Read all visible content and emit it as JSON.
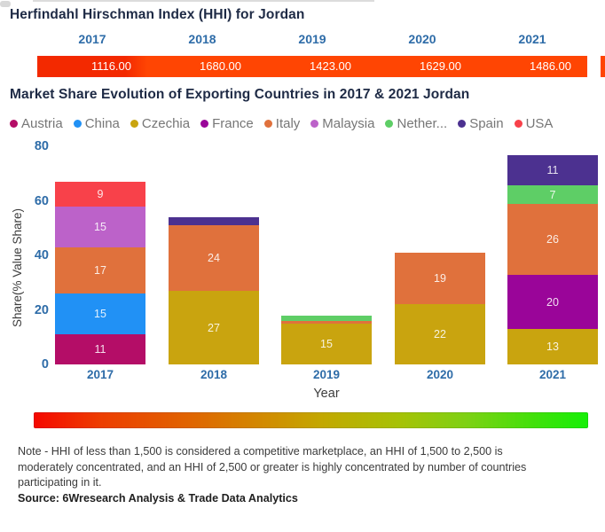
{
  "hhi_section": {
    "title": "Herfindahl Hirschman Index (HHI) for Jordan",
    "years": [
      "2017",
      "2018",
      "2019",
      "2020",
      "2021"
    ],
    "values": [
      "1116.00",
      "1680.00",
      "1423.00",
      "1629.00",
      "1486.00"
    ],
    "bar_color": "#ff4503"
  },
  "share_section": {
    "title": "Market Share Evolution of Exporting Countries in 2017 & 2021 Jordan",
    "legend": [
      {
        "label": "Austria",
        "color": "#b40d67"
      },
      {
        "label": "China",
        "color": "#2191f5"
      },
      {
        "label": "Czechia",
        "color": "#c9a40f"
      },
      {
        "label": "France",
        "color": "#9a0599"
      },
      {
        "label": "Italy",
        "color": "#e0713c"
      },
      {
        "label": "Malaysia",
        "color": "#bc62c9"
      },
      {
        "label": "Nether...",
        "color": "#5ece66"
      },
      {
        "label": "Spain",
        "color": "#4c3190"
      },
      {
        "label": "USA",
        "color": "#f8414a"
      }
    ],
    "y_axis_label": "Share(% Value Share)",
    "x_axis_label": "Year",
    "y_ticks": [
      "0",
      "20",
      "40",
      "60",
      "80"
    ],
    "x_ticks": [
      "2017",
      "2018",
      "2019",
      "2020",
      "2021"
    ]
  },
  "chart_data": [
    {
      "type": "table",
      "title": "Herfindahl Hirschman Index (HHI) for Jordan",
      "categories": [
        "2017",
        "2018",
        "2019",
        "2020",
        "2021"
      ],
      "values": [
        1116.0,
        1680.0,
        1423.0,
        1629.0,
        1486.0
      ]
    },
    {
      "type": "bar",
      "stacked": true,
      "title": "Market Share Evolution of Exporting Countries in 2017 & 2021 Jordan",
      "categories": [
        "2017",
        "2018",
        "2019",
        "2020",
        "2021"
      ],
      "series": [
        {
          "name": "Austria",
          "color": "#b40d67",
          "values": [
            11,
            0,
            0,
            0,
            0
          ]
        },
        {
          "name": "China",
          "color": "#2191f5",
          "values": [
            15,
            0,
            0,
            0,
            0
          ]
        },
        {
          "name": "Czechia",
          "color": "#c9a40f",
          "values": [
            0,
            27,
            15,
            22,
            13
          ]
        },
        {
          "name": "France",
          "color": "#9a0599",
          "values": [
            0,
            0,
            0,
            0,
            20
          ]
        },
        {
          "name": "Italy",
          "color": "#e0713c",
          "values": [
            17,
            24,
            1,
            19,
            26
          ]
        },
        {
          "name": "Malaysia",
          "color": "#bc62c9",
          "values": [
            15,
            0,
            0,
            0,
            0
          ]
        },
        {
          "name": "Netherlands",
          "color": "#5ece66",
          "values": [
            0,
            0,
            2,
            0,
            7
          ]
        },
        {
          "name": "Spain",
          "color": "#4c3190",
          "values": [
            0,
            3,
            0,
            0,
            11
          ]
        },
        {
          "name": "USA",
          "color": "#f8414a",
          "values": [
            9,
            0,
            0,
            0,
            0
          ]
        }
      ],
      "xlabel": "Year",
      "ylabel": "Share(% Value Share)",
      "ylim": [
        0,
        80
      ],
      "grid": false,
      "legend_position": "top",
      "min_value_for_label": 7
    }
  ],
  "footer": {
    "note": "Note - HHI of less than 1,500 is considered a competitive marketplace, an HHI of 1,500 to 2,500 is moderately concentrated, and an HHI of 2,500 or greater is highly concentrated by number of countries participating in it.",
    "source": "Source: 6Wresearch Analysis & Trade Data Analytics"
  }
}
